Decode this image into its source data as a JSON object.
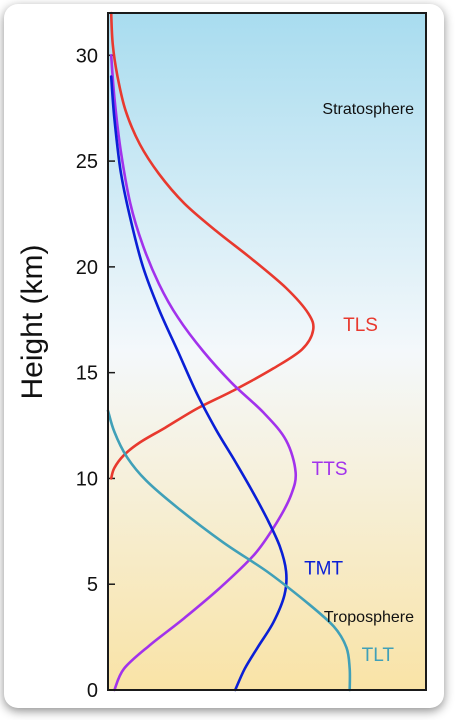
{
  "chart_data": {
    "type": "line",
    "title": "",
    "xlabel": "",
    "ylabel": "Height (km)",
    "ylim": [
      0,
      32
    ],
    "y_ticks": [
      0,
      5,
      10,
      15,
      20,
      25,
      30
    ],
    "grid": false,
    "legend": "none (series labelled directly on curves)",
    "regions": [
      {
        "name": "Stratosphere",
        "label_height_km": 27.5
      },
      {
        "name": "Troposphere",
        "label_height_km": 3.5
      }
    ],
    "background_colors": {
      "top": "#a8dcef",
      "middle": "#f4f8fb",
      "bottom": "#f9e3a6"
    },
    "series": [
      {
        "name": "TLS",
        "color": "#e8392e",
        "label_height_km": 17.3,
        "points": [
          [
            0.01,
            10
          ],
          [
            0.02,
            10.5
          ],
          [
            0.05,
            11.1
          ],
          [
            0.1,
            11.7
          ],
          [
            0.18,
            12.4
          ],
          [
            0.28,
            13.3
          ],
          [
            0.4,
            14.2
          ],
          [
            0.52,
            15.2
          ],
          [
            0.61,
            16.1
          ],
          [
            0.645,
            17
          ],
          [
            0.63,
            17.8
          ],
          [
            0.56,
            19
          ],
          [
            0.45,
            20.4
          ],
          [
            0.34,
            21.7
          ],
          [
            0.24,
            23
          ],
          [
            0.16,
            24.4
          ],
          [
            0.1,
            25.8
          ],
          [
            0.055,
            27.4
          ],
          [
            0.03,
            29
          ],
          [
            0.015,
            30.5
          ],
          [
            0.01,
            32
          ]
        ]
      },
      {
        "name": "TTS",
        "color": "#a232ec",
        "label_height_km": 10.5,
        "points": [
          [
            0.02,
            0
          ],
          [
            0.05,
            1
          ],
          [
            0.13,
            2.1
          ],
          [
            0.24,
            3.4
          ],
          [
            0.35,
            4.8
          ],
          [
            0.46,
            6.4
          ],
          [
            0.53,
            7.9
          ],
          [
            0.575,
            9.2
          ],
          [
            0.59,
            10.3
          ],
          [
            0.56,
            11.8
          ],
          [
            0.49,
            13.1
          ],
          [
            0.39,
            14.5
          ],
          [
            0.3,
            16
          ],
          [
            0.22,
            17.6
          ],
          [
            0.16,
            19.2
          ],
          [
            0.11,
            21
          ],
          [
            0.07,
            23
          ],
          [
            0.04,
            25.5
          ],
          [
            0.02,
            28
          ],
          [
            0.01,
            30
          ]
        ]
      },
      {
        "name": "TMT",
        "color": "#0a1fd6",
        "label_height_km": 5.8,
        "points": [
          [
            0.4,
            0
          ],
          [
            0.43,
            1
          ],
          [
            0.47,
            2
          ],
          [
            0.52,
            3.2
          ],
          [
            0.555,
            4.5
          ],
          [
            0.56,
            5.6
          ],
          [
            0.54,
            6.8
          ],
          [
            0.5,
            8.1
          ],
          [
            0.45,
            9.5
          ],
          [
            0.4,
            10.8
          ],
          [
            0.34,
            12.3
          ],
          [
            0.28,
            14
          ],
          [
            0.22,
            16
          ],
          [
            0.16,
            18
          ],
          [
            0.11,
            20
          ],
          [
            0.07,
            22.3
          ],
          [
            0.04,
            24.5
          ],
          [
            0.02,
            27
          ],
          [
            0.01,
            29
          ]
        ]
      },
      {
        "name": "TLT",
        "color": "#40a0b8",
        "label_height_km": 1.7,
        "points": [
          [
            0.76,
            0
          ],
          [
            0.76,
            1
          ],
          [
            0.75,
            2
          ],
          [
            0.71,
            3
          ],
          [
            0.62,
            4.2
          ],
          [
            0.5,
            5.6
          ],
          [
            0.36,
            7
          ],
          [
            0.22,
            8.6
          ],
          [
            0.12,
            9.9
          ],
          [
            0.06,
            11
          ],
          [
            0.02,
            12.2
          ],
          [
            0.0,
            13.2
          ]
        ]
      }
    ]
  }
}
